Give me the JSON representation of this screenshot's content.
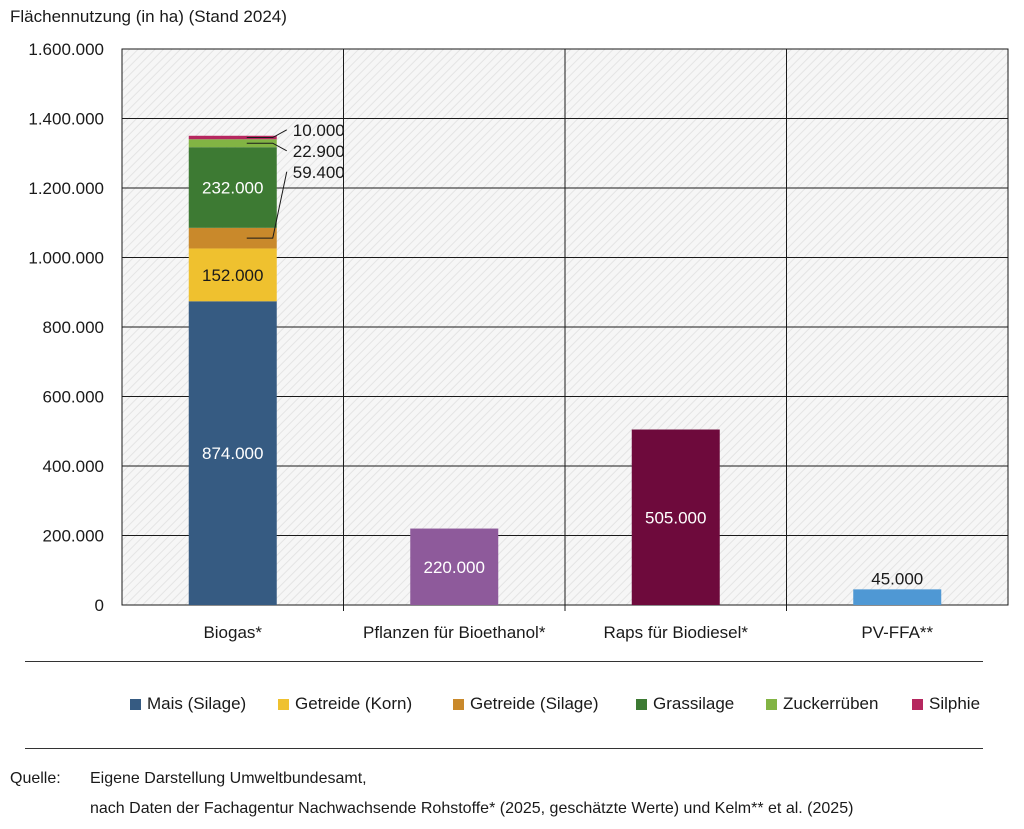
{
  "chart_data": {
    "type": "bar",
    "stacked": true,
    "title": "Flächennutzung (in ha) (Stand 2024)",
    "xlabel": "",
    "ylabel": "Flächennutzung (in ha)",
    "ylim": [
      0,
      1600000
    ],
    "yticks": [
      0,
      200000,
      400000,
      600000,
      800000,
      1000000,
      1200000,
      1400000,
      1600000
    ],
    "ytick_labels": [
      "0",
      "200.000",
      "400.000",
      "600.000",
      "800.000",
      "1.000.000",
      "1.200.000",
      "1.400.000",
      "1.600.000"
    ],
    "grid": true,
    "legend_position": "bottom",
    "categories": [
      "Biogas*",
      "Pflanzen für Bioethanol*",
      "Raps für Biodiesel*",
      "PV-FFA**"
    ],
    "series": [
      {
        "name": "Mais (Silage)",
        "color": "#365b82",
        "values": [
          874000,
          0,
          0,
          0
        ],
        "labels": [
          "874.000",
          "",
          "",
          ""
        ]
      },
      {
        "name": "Getreide (Korn)",
        "color": "#efc12f",
        "values": [
          152000,
          0,
          0,
          0
        ],
        "labels": [
          "152.000",
          "",
          "",
          ""
        ]
      },
      {
        "name": "Getreide (Silage)",
        "color": "#c9892b",
        "values": [
          59400,
          0,
          0,
          0
        ],
        "labels": [
          "59.400",
          "",
          "",
          ""
        ]
      },
      {
        "name": "Grassilage",
        "color": "#3d7a33",
        "values": [
          232000,
          0,
          0,
          0
        ],
        "labels": [
          "232.000",
          "",
          "",
          ""
        ]
      },
      {
        "name": "Zuckerrüben",
        "color": "#82b444",
        "values": [
          22900,
          0,
          0,
          0
        ],
        "labels": [
          "22.900",
          "",
          "",
          ""
        ]
      },
      {
        "name": "Silphie",
        "color": "#b5275f",
        "values": [
          10000,
          0,
          0,
          0
        ],
        "labels": [
          "10.000",
          "",
          "",
          ""
        ]
      }
    ],
    "single_bars": [
      {
        "category": "Pflanzen für Bioethanol*",
        "value": 220000,
        "label": "220.000",
        "color": "#8e5a9b",
        "label_inside": true
      },
      {
        "category": "Raps für Biodiesel*",
        "value": 505000,
        "label": "505.000",
        "color": "#6e0a3c",
        "label_inside": true
      },
      {
        "category": "PV-FFA**",
        "value": 45000,
        "label": "45.000",
        "color": "#4f98d4",
        "label_inside": false
      }
    ]
  },
  "source": {
    "label": "Quelle:",
    "line1": "Eigene Darstellung Umweltbundesamt,",
    "line2": "nach Daten der Fachagentur Nachwachsende Rohstoffe* (2025, geschätzte Werte) und Kelm** et al. (2025)"
  }
}
